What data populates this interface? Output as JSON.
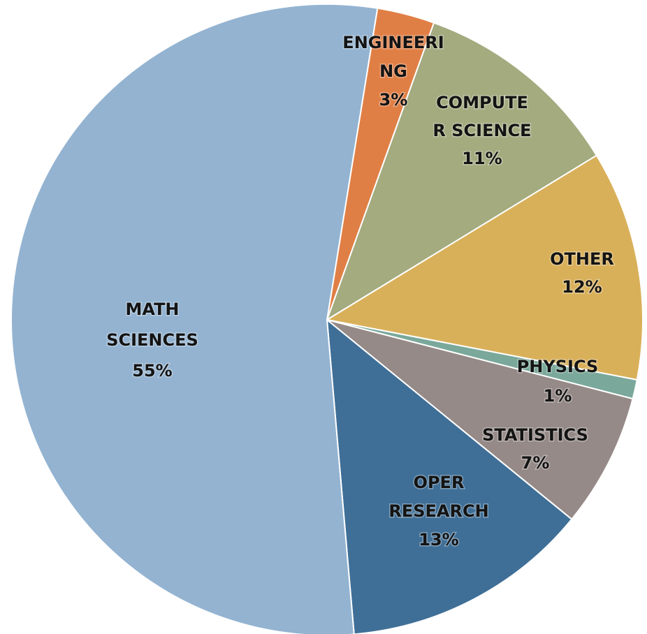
{
  "chart_data": {
    "type": "pie",
    "categories": [
      [
        "ENGINEERI",
        "NG"
      ],
      [
        "COMPUTE",
        "R SCIENCE"
      ],
      [
        "OTHER"
      ],
      [
        "PHYSICS"
      ],
      [
        "STATISTICS"
      ],
      [
        "OPER",
        "RESEARCH"
      ],
      [
        "MATH",
        "SCIENCES"
      ]
    ],
    "values": [
      3,
      11,
      12,
      1,
      7,
      13,
      55
    ],
    "value_labels": [
      "3%",
      "11%",
      "12%",
      "1%",
      "7%",
      "13%",
      "55%"
    ],
    "colors": [
      "#e07f45",
      "#a3ab7f",
      "#d9b05a",
      "#7aa89a",
      "#958a87",
      "#3f6f97",
      "#93b3d1"
    ]
  }
}
